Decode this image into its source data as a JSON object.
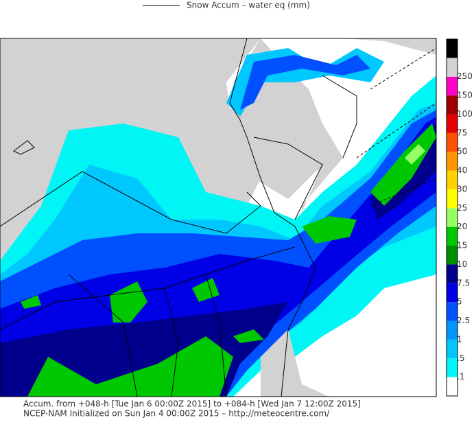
{
  "title": "Snow Accum – water eq (mm)",
  "legend": {
    "labels": [
      ".1",
      ".5",
      "1",
      "2.5",
      "5",
      "7.5",
      "10",
      "15",
      "20",
      "25",
      "30",
      "40",
      "50",
      "75",
      "100",
      "150",
      "250"
    ],
    "colors": [
      "#ffffff",
      "#00f5f5",
      "#00c8ff",
      "#0096ff",
      "#0050ff",
      "#0000e6",
      "#00008c",
      "#008c00",
      "#00c800",
      "#96ff64",
      "#ffff00",
      "#ffd200",
      "#ff9600",
      "#ff5000",
      "#e60000",
      "#a00000",
      "#ff00c8",
      "#d2d2d2",
      "#000000"
    ]
  },
  "footer": {
    "line1": "Accum. from +048-h [Tue Jan 6 00:00Z 2015] to +084-h [Wed Jan 7 12:00Z 2015]",
    "line2": "NCEP-NAM Initialized on Sun Jan 4 00:00Z 2015 – http://meteocentre.com/"
  }
}
